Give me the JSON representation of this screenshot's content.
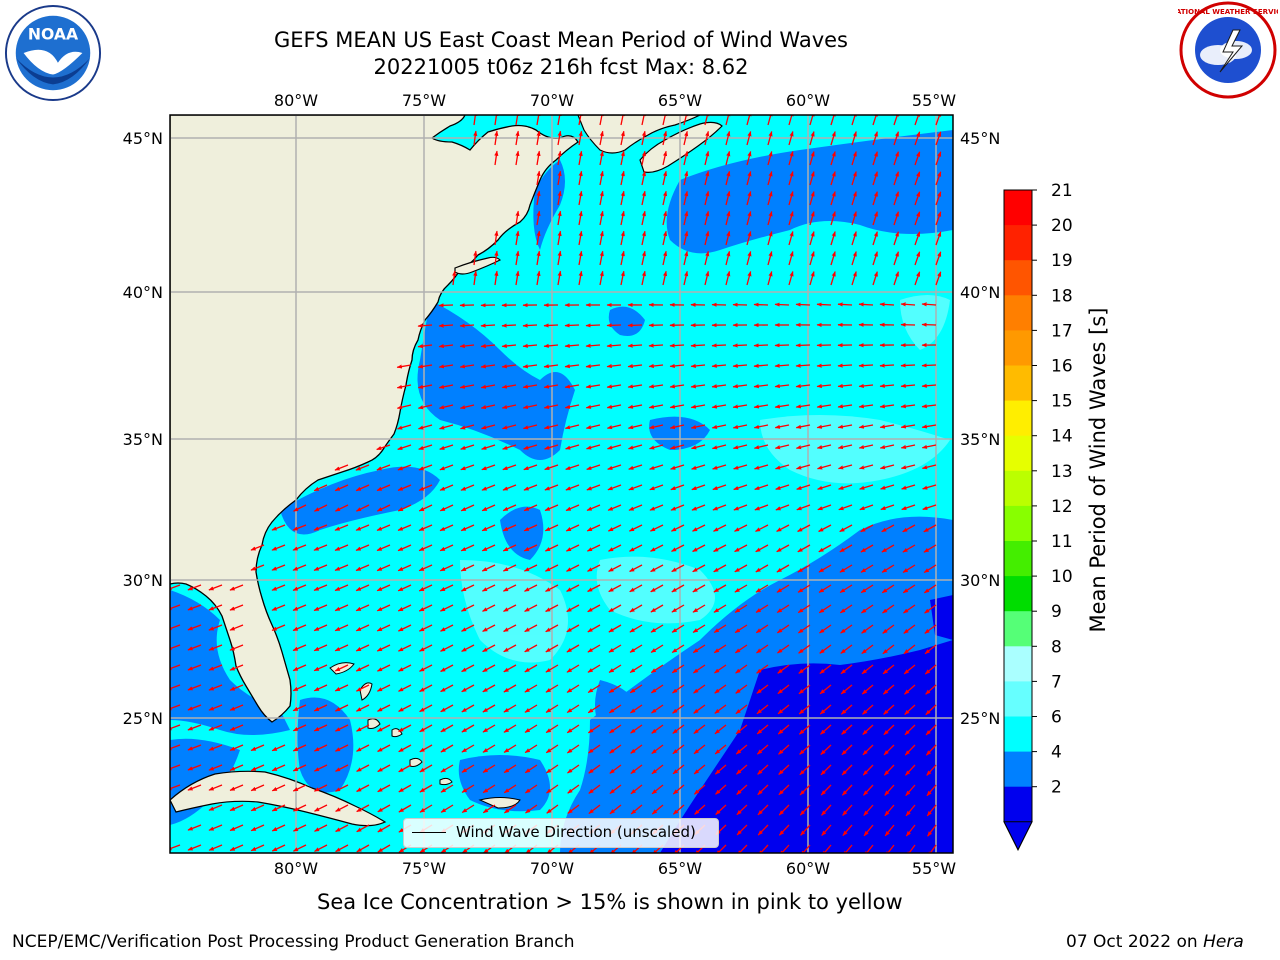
{
  "title": {
    "line1": "GEFS MEAN US East Coast Mean Period of Wind Waves",
    "line2": "20221005 t06z 216h fcst   Max: 8.62"
  },
  "axes": {
    "lon_labels": [
      "80°W",
      "75°W",
      "70°W",
      "65°W",
      "60°W",
      "55°W"
    ],
    "lat_labels": [
      "45°N",
      "40°N",
      "35°N",
      "30°N",
      "25°N"
    ]
  },
  "colorbar": {
    "label": "Mean Period of Wind Waves [s]",
    "ticks": [
      "21",
      "20",
      "19",
      "18",
      "17",
      "16",
      "15",
      "14",
      "13",
      "12",
      "11",
      "10",
      "9",
      "8",
      "7",
      "6",
      "4",
      "2"
    ],
    "colors": [
      "#ff0000",
      "#ff2200",
      "#ff5500",
      "#ff7f00",
      "#ff9900",
      "#ffbb00",
      "#ffee00",
      "#e6ff00",
      "#bbff00",
      "#88ff00",
      "#44ee00",
      "#00dd00",
      "#55ff77",
      "#aaffff",
      "#66ffff",
      "#00ffff",
      "#0080ff",
      "#0000ee"
    ],
    "extend_color": "#0000ee"
  },
  "legend": {
    "label": "Wind Wave Direction (unscaled)"
  },
  "note": "Sea Ice Concentration > 15% is shown in pink to yellow",
  "footer": {
    "left": "NCEP/EMC/Verification Post Processing Product Generation Branch",
    "right_date": "07 Oct 2022 on ",
    "right_machine": "Hera"
  },
  "logos": {
    "left": "NOAA",
    "right": "NATIONAL WEATHER SERVICE"
  }
}
